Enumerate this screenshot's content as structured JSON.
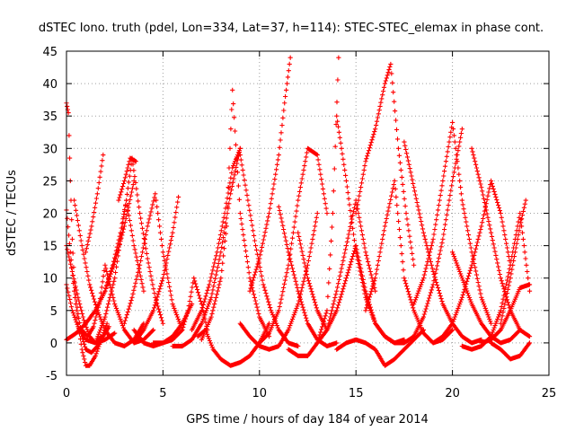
{
  "chart_data": {
    "type": "scatter",
    "title": "dSTEC Iono. truth (pdel, Lon=334, Lat=37, h=114): STEC-STEC_elemax in phase cont.",
    "xlabel": "GPS time / hours of day 184 of year 2014",
    "ylabel": "dSTEC  / TECUs",
    "xlim": [
      0,
      25
    ],
    "ylim": [
      -5,
      45
    ],
    "xticks": [
      0,
      5,
      10,
      15,
      20,
      25
    ],
    "yticks": [
      -5,
      0,
      5,
      10,
      15,
      20,
      25,
      30,
      35,
      40,
      45
    ],
    "grid": true,
    "marker": "+",
    "series_color": "#ff0000",
    "series": [
      {
        "x": [
          0.0,
          0.1,
          0.2,
          0.3,
          0.4,
          0.6,
          0.8,
          1.0,
          1.3,
          1.6,
          1.9,
          2.2
        ],
        "y": [
          37.0,
          35.5,
          25.0,
          16.0,
          9.5,
          4.5,
          1.0,
          -1.0,
          -1.5,
          -0.5,
          1.0,
          2.5
        ]
      },
      {
        "x": [
          0.0,
          0.2,
          0.4,
          0.6,
          0.8,
          1.0,
          1.2,
          1.5,
          1.8,
          2.1
        ],
        "y": [
          20.5,
          14.0,
          8.0,
          3.0,
          -1.0,
          -3.5,
          -3.5,
          -2.0,
          0.5,
          3.0
        ]
      },
      {
        "x": [
          0.0,
          0.3,
          0.6,
          0.9,
          1.2,
          1.5,
          1.8
        ],
        "y": [
          15.0,
          11.0,
          7.0,
          3.5,
          1.0,
          0.0,
          1.0
        ]
      },
      {
        "x": [
          0.0,
          0.3,
          0.6,
          1.0,
          1.5,
          2.0,
          2.5
        ],
        "y": [
          9.0,
          5.0,
          2.5,
          0.5,
          0.0,
          0.5,
          1.5
        ]
      },
      {
        "x": [
          0.0,
          0.5,
          1.0,
          1.5,
          2.0,
          2.5,
          3.0,
          3.5
        ],
        "y": [
          0.5,
          1.5,
          3.0,
          5.0,
          8.0,
          12.5,
          18.0,
          25.0
        ]
      },
      {
        "x": [
          0.4,
          0.8,
          1.2,
          1.6,
          2.0,
          2.5,
          3.0,
          3.5,
          4.0
        ],
        "y": [
          22.0,
          15.0,
          9.0,
          5.0,
          2.0,
          0.0,
          -0.5,
          0.5,
          3.0
        ]
      },
      {
        "x": [
          0.8,
          1.1,
          1.4,
          1.7,
          2.0,
          2.5,
          3.0,
          3.5,
          4.0,
          4.5
        ],
        "y": [
          2.0,
          1.0,
          2.5,
          6.0,
          12.0,
          6.0,
          2.0,
          0.0,
          0.5,
          2.0
        ]
      },
      {
        "x": [
          1.0,
          1.3,
          1.6,
          1.9
        ],
        "y": [
          14.0,
          18.0,
          23.0,
          29.0
        ]
      },
      {
        "x": [
          1.5,
          2.0,
          2.5,
          2.8,
          3.1,
          3.5,
          4.0
        ],
        "y": [
          0.0,
          4.0,
          10.0,
          16.0,
          22.0,
          15.0,
          8.0
        ]
      },
      {
        "x": [
          2.0,
          2.4,
          2.8,
          3.1,
          3.4,
          3.8,
          4.2,
          4.6,
          5.0
        ],
        "y": [
          8.0,
          12.0,
          17.0,
          22.0,
          28.5,
          20.0,
          13.0,
          7.0,
          3.0
        ]
      },
      {
        "x": [
          2.7,
          3.0,
          3.3,
          3.6
        ],
        "y": [
          22.0,
          25.0,
          28.5,
          28.0
        ]
      },
      {
        "x": [
          3.0,
          3.4,
          3.8,
          4.2,
          4.6,
          5.0,
          5.5,
          6.0
        ],
        "y": [
          3.0,
          7.0,
          12.0,
          18.0,
          23.0,
          14.0,
          6.0,
          2.0
        ]
      },
      {
        "x": [
          3.5,
          4.0,
          4.5,
          5.0,
          5.5,
          5.8
        ],
        "y": [
          0.0,
          2.0,
          5.0,
          10.0,
          17.0,
          22.5
        ]
      },
      {
        "x": [
          3.5,
          4.0,
          4.5,
          5.0,
          5.5,
          6.0,
          6.5
        ],
        "y": [
          2.0,
          0.0,
          -0.5,
          0.0,
          1.0,
          3.0,
          6.0
        ]
      },
      {
        "x": [
          4.5,
          5.0,
          5.5,
          6.0,
          6.3,
          6.6,
          7.0,
          7.3
        ],
        "y": [
          0.0,
          0.0,
          0.5,
          2.0,
          5.0,
          10.0,
          6.0,
          2.0
        ]
      },
      {
        "x": [
          5.5,
          6.0,
          6.5,
          7.0,
          7.5,
          8.0,
          8.5,
          9.0
        ],
        "y": [
          -0.5,
          -0.5,
          0.5,
          3.0,
          7.0,
          14.0,
          23.0,
          30.0
        ]
      },
      {
        "x": [
          6.5,
          7.0,
          7.4,
          7.8,
          8.2,
          8.6,
          9.0
        ],
        "y": [
          2.0,
          5.0,
          9.0,
          14.0,
          20.0,
          27.0,
          30.0
        ]
      },
      {
        "x": [
          6.8,
          7.2,
          7.6,
          8.0,
          8.5,
          9.0,
          9.5,
          10.0,
          10.5
        ],
        "y": [
          1.0,
          2.0,
          -1.0,
          -2.5,
          -3.5,
          -3.0,
          -2.0,
          0.0,
          3.0
        ]
      },
      {
        "x": [
          7.0,
          7.5,
          8.0,
          8.3,
          8.6,
          9.0,
          9.5,
          10.0,
          10.5
        ],
        "y": [
          0.5,
          4.0,
          10.0,
          18.0,
          39.0,
          20.0,
          10.0,
          4.0,
          1.0
        ]
      },
      {
        "x": [
          9.0,
          9.4,
          9.8,
          10.2,
          10.6,
          11.0,
          11.5,
          12.0
        ],
        "y": [
          29.0,
          22.0,
          15.0,
          9.0,
          5.0,
          2.0,
          0.0,
          -0.5
        ]
      },
      {
        "x": [
          9.0,
          9.5,
          10.0,
          10.5,
          11.0,
          11.5,
          12.0,
          12.5,
          13.0
        ],
        "y": [
          3.0,
          1.0,
          -0.5,
          -1.0,
          -0.5,
          2.0,
          6.0,
          12.0,
          20.0
        ]
      },
      {
        "x": [
          9.5,
          10.0,
          10.5,
          11.0,
          11.3,
          11.6
        ],
        "y": [
          8.0,
          13.0,
          20.0,
          29.0,
          37.0,
          44.0
        ]
      },
      {
        "x": [
          10.0,
          10.5,
          11.0,
          11.5,
          12.0,
          12.5,
          13.0,
          13.5
        ],
        "y": [
          0.0,
          1.5,
          5.0,
          12.0,
          22.0,
          30.0,
          29.0,
          20.0
        ]
      },
      {
        "x": [
          11.0,
          11.5,
          12.0,
          12.5,
          13.0,
          13.5,
          14.0
        ],
        "y": [
          21.0,
          14.0,
          8.0,
          3.0,
          0.5,
          -0.5,
          0.0
        ]
      },
      {
        "x": [
          11.5,
          12.0,
          12.5,
          13.0,
          13.5,
          13.8,
          14.1
        ],
        "y": [
          -1.0,
          -2.0,
          -2.0,
          0.0,
          5.0,
          20.0,
          44.0
        ]
      },
      {
        "x": [
          12.0,
          12.5,
          13.0,
          13.5,
          14.0,
          14.5,
          15.0,
          15.5,
          16.0
        ],
        "y": [
          17.0,
          10.0,
          5.0,
          2.0,
          8.0,
          15.0,
          22.0,
          14.0,
          8.0
        ]
      },
      {
        "x": [
          13.0,
          13.5,
          14.0,
          14.5,
          15.0,
          15.5,
          16.0,
          16.5,
          17.0,
          17.5
        ],
        "y": [
          0.0,
          2.0,
          5.0,
          10.0,
          15.0,
          8.0,
          3.0,
          1.0,
          0.0,
          0.5
        ]
      },
      {
        "x": [
          14.0,
          14.5,
          15.0,
          15.5,
          16.0,
          16.5,
          17.0
        ],
        "y": [
          35.0,
          25.0,
          14.0,
          7.0,
          3.0,
          1.0,
          0.0
        ]
      },
      {
        "x": [
          14.0,
          14.5,
          15.0,
          15.5,
          16.0,
          16.5,
          17.0,
          17.5,
          18.0,
          18.5
        ],
        "y": [
          -1.0,
          0.0,
          0.5,
          0.0,
          -1.0,
          -3.5,
          -2.5,
          -1.0,
          0.5,
          2.0
        ]
      },
      {
        "x": [
          15.0,
          15.5,
          16.0,
          16.5,
          16.8,
          17.2,
          17.6,
          18.0
        ],
        "y": [
          20.0,
          28.0,
          33.0,
          40.0,
          43.0,
          30.0,
          20.0,
          12.0
        ]
      },
      {
        "x": [
          15.5,
          16.0,
          16.5,
          17.0,
          17.5,
          18.0,
          18.5,
          19.0,
          19.5,
          20.0
        ],
        "y": [
          5.0,
          10.0,
          18.0,
          25.0,
          10.0,
          5.0,
          1.5,
          0.0,
          0.5,
          2.0
        ]
      },
      {
        "x": [
          17.0,
          17.5,
          18.0,
          18.5,
          19.0,
          19.5,
          20.0,
          20.5
        ],
        "y": [
          0.0,
          0.0,
          1.0,
          4.0,
          9.0,
          16.0,
          25.0,
          33.0
        ]
      },
      {
        "x": [
          17.5,
          18.0,
          18.5,
          19.0,
          19.5,
          20.0,
          20.5,
          21.0,
          21.5
        ],
        "y": [
          31.0,
          24.0,
          17.0,
          11.0,
          6.0,
          3.0,
          1.0,
          0.0,
          0.5
        ]
      },
      {
        "x": [
          18.0,
          18.5,
          19.0,
          19.5,
          20.0,
          20.5,
          21.0,
          21.5,
          22.0
        ],
        "y": [
          6.0,
          10.0,
          16.0,
          25.0,
          34.0,
          22.0,
          14.0,
          7.0,
          3.0
        ]
      },
      {
        "x": [
          19.0,
          19.5,
          20.0,
          20.5,
          21.0,
          21.5,
          22.0,
          22.5,
          23.0
        ],
        "y": [
          0.0,
          1.0,
          3.0,
          7.0,
          12.0,
          18.0,
          25.0,
          20.0,
          12.0
        ]
      },
      {
        "x": [
          20.0,
          20.5,
          21.0,
          21.5,
          22.0,
          22.5,
          23.0,
          23.5
        ],
        "y": [
          14.0,
          10.0,
          6.0,
          3.0,
          1.0,
          0.0,
          0.5,
          2.0
        ]
      },
      {
        "x": [
          20.5,
          21.0,
          21.5,
          22.0,
          22.5,
          23.0,
          23.5,
          24.0
        ],
        "y": [
          -0.5,
          -1.0,
          -0.5,
          1.0,
          5.0,
          12.0,
          20.0,
          8.0
        ]
      },
      {
        "x": [
          21.0,
          21.5,
          22.0,
          22.5,
          23.0,
          23.5,
          24.0
        ],
        "y": [
          30.0,
          24.0,
          17.0,
          10.0,
          5.0,
          2.0,
          1.0
        ]
      },
      {
        "x": [
          21.5,
          22.0,
          22.5,
          23.0,
          23.5,
          24.0
        ],
        "y": [
          0.0,
          0.5,
          2.0,
          5.0,
          8.5,
          9.0
        ]
      },
      {
        "x": [
          22.0,
          22.5,
          23.0,
          23.5,
          24.0
        ],
        "y": [
          0.0,
          -1.0,
          -2.5,
          -2.0,
          0.0
        ]
      },
      {
        "x": [
          22.5,
          23.0,
          23.5,
          23.8
        ],
        "y": [
          3.0,
          10.0,
          18.0,
          22.0
        ]
      }
    ]
  }
}
